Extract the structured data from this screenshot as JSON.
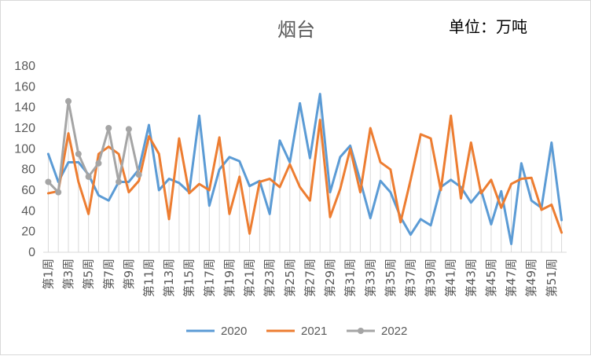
{
  "chart_data": {
    "type": "line",
    "title": "烟台",
    "unit_label": "单位：万吨",
    "ylim": [
      0,
      180
    ],
    "y_ticks": [
      0,
      20,
      40,
      60,
      80,
      100,
      120,
      140,
      160,
      180
    ],
    "x_tick_labels": [
      "第1周",
      "第3周",
      "第5周",
      "第7周",
      "第9周",
      "第11周",
      "第13周",
      "第15周",
      "第17周",
      "第19周",
      "第21周",
      "第23周",
      "第25周",
      "第27周",
      "第29周",
      "第31周",
      "第33周",
      "第35周",
      "第37周",
      "第39周",
      "第41周",
      "第43周",
      "第45周",
      "第47周",
      "第49周",
      "第51周"
    ],
    "x_tick_weeks": [
      1,
      3,
      5,
      7,
      9,
      11,
      13,
      15,
      17,
      19,
      21,
      23,
      25,
      27,
      29,
      31,
      33,
      35,
      37,
      39,
      41,
      43,
      45,
      47,
      49,
      51
    ],
    "x_count": 52,
    "grid": "vertical drop lines",
    "legend_position": "bottom",
    "series": [
      {
        "name": "2020",
        "color": "#5b9bd5",
        "markers": false,
        "values": [
          95,
          68,
          87,
          87,
          75,
          55,
          50,
          68,
          68,
          80,
          123,
          60,
          71,
          67,
          58,
          132,
          45,
          80,
          92,
          88,
          64,
          69,
          37,
          108,
          87,
          144,
          91,
          153,
          58,
          92,
          103,
          69,
          33,
          69,
          58,
          34,
          17,
          32,
          26,
          63,
          70,
          63,
          48,
          60,
          27,
          59,
          8,
          86,
          50,
          43,
          106,
          31
        ]
      },
      {
        "name": "2021",
        "color": "#ed7d31",
        "markers": false,
        "values": [
          57,
          59,
          115,
          68,
          37,
          95,
          102,
          95,
          58,
          69,
          112,
          95,
          32,
          110,
          57,
          66,
          60,
          111,
          37,
          73,
          18,
          68,
          71,
          63,
          85,
          63,
          50,
          128,
          34,
          61,
          100,
          58,
          120,
          87,
          80,
          29,
          70,
          114,
          110,
          60,
          132,
          52,
          106,
          57,
          70,
          43,
          66,
          71,
          72,
          41,
          46,
          19
        ]
      },
      {
        "name": "2022",
        "color": "#a5a5a5",
        "markers": true,
        "values": [
          68,
          58,
          146,
          95,
          73,
          86,
          120,
          68,
          119,
          75
        ]
      }
    ]
  }
}
